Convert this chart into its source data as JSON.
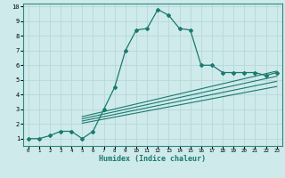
{
  "xlabel": "Humidex (Indice chaleur)",
  "bg_color": "#ceeaeb",
  "grid_color": "#b8d8d8",
  "line_color": "#1a7a6e",
  "xlim": [
    -0.5,
    23.5
  ],
  "ylim": [
    0.5,
    10.2
  ],
  "xticks": [
    0,
    1,
    2,
    3,
    4,
    5,
    6,
    7,
    8,
    9,
    10,
    11,
    12,
    13,
    14,
    15,
    16,
    17,
    18,
    19,
    20,
    21,
    22,
    23
  ],
  "yticks": [
    1,
    2,
    3,
    4,
    5,
    6,
    7,
    8,
    9,
    10
  ],
  "main_x": [
    0,
    1,
    2,
    3,
    4,
    5,
    6,
    7,
    8,
    9,
    10,
    11,
    12,
    13,
    14,
    15,
    16,
    17,
    18,
    19,
    20,
    21,
    22,
    23
  ],
  "main_y": [
    1.0,
    1.0,
    1.2,
    1.5,
    1.5,
    1.0,
    1.5,
    3.0,
    4.5,
    7.0,
    8.4,
    8.5,
    9.8,
    9.4,
    8.5,
    8.4,
    6.0,
    6.0,
    5.5,
    5.5,
    5.5,
    5.5,
    5.3,
    5.5
  ],
  "lines": [
    {
      "x": [
        5,
        23
      ],
      "y": [
        2.5,
        5.6
      ]
    },
    {
      "x": [
        5,
        23
      ],
      "y": [
        2.35,
        5.25
      ]
    },
    {
      "x": [
        5,
        23
      ],
      "y": [
        2.2,
        4.9
      ]
    },
    {
      "x": [
        5,
        23
      ],
      "y": [
        2.05,
        4.55
      ]
    }
  ]
}
